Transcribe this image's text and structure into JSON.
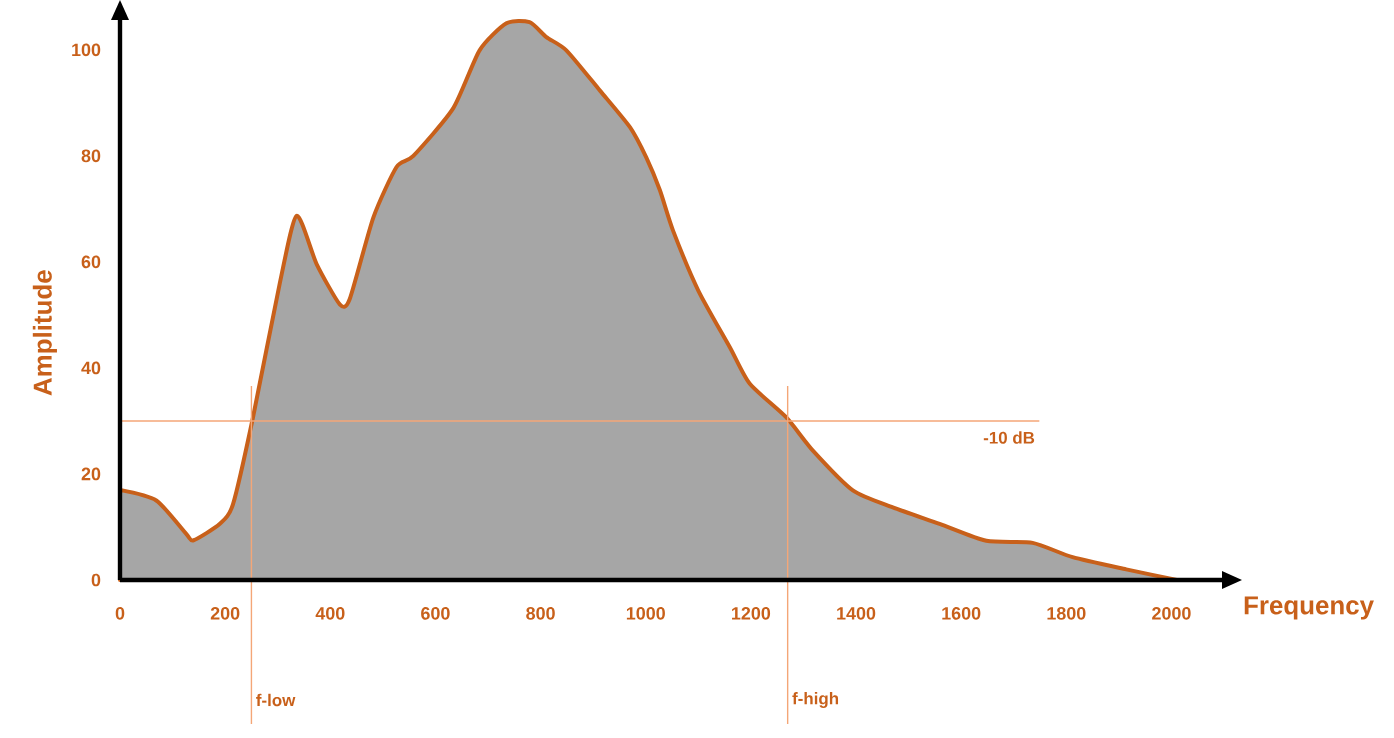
{
  "chart_data": {
    "type": "area",
    "xlabel": "Frequency",
    "ylabel": "Amplitude",
    "x": [
      0,
      69,
      126,
      140,
      190,
      215,
      253,
      304,
      336,
      374,
      418,
      437,
      482,
      526,
      558,
      634,
      684,
      735,
      779,
      811,
      849,
      913,
      970,
      1001,
      1027,
      1052,
      1100,
      1160,
      1198,
      1267,
      1318,
      1394,
      1470,
      1559,
      1648,
      1736,
      1812,
      1914,
      2010
    ],
    "series": [
      {
        "color": "#c8601a",
        "values": [
          17,
          15,
          8.7,
          7.5,
          10.6,
          14.3,
          30.7,
          56,
          68.7,
          59.6,
          52,
          53,
          68.4,
          77.9,
          80,
          89,
          99.9,
          105,
          105.2,
          102.4,
          99.9,
          92.3,
          85.4,
          79.7,
          73.5,
          65.9,
          54.6,
          43.9,
          37,
          30.7,
          24.4,
          16.9,
          13.7,
          10.6,
          7.4,
          7,
          4.3,
          2,
          0
        ]
      }
    ],
    "xlim": [
      0,
      2100
    ],
    "ylim": [
      0,
      106
    ],
    "xticks": [
      0,
      200,
      400,
      600,
      800,
      1000,
      1200,
      1400,
      1600,
      1800,
      2000
    ],
    "yticks": [
      0,
      20,
      40,
      60,
      80,
      100
    ],
    "grid": false,
    "ref_lines": [
      {
        "axis": "y",
        "value": 30,
        "label": "-10 dB",
        "color": "#f4a677"
      },
      {
        "axis": "x",
        "value": 250,
        "label": "f-low",
        "color": "#f4a677"
      },
      {
        "axis": "x",
        "value": 1270,
        "label": "f-high",
        "color": "#f4a677"
      }
    ]
  }
}
